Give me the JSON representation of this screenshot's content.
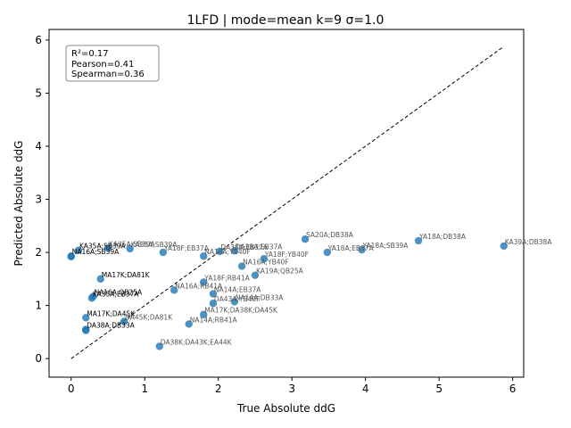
{
  "chart_data": {
    "type": "scatter",
    "title": "1LFD | mode=mean k=9 σ=1.0",
    "xlabel": "True Absolute ddG",
    "ylabel": "Predicted Absolute ddG",
    "xlim": [
      -0.3,
      6.15
    ],
    "ylim": [
      -0.35,
      6.2
    ],
    "xticks": [
      "0",
      "1",
      "2",
      "3",
      "4",
      "5",
      "6"
    ],
    "yticks": [
      "0",
      "1",
      "2",
      "3",
      "4",
      "5",
      "6"
    ],
    "diagonal": {
      "from": [
        0,
        0
      ],
      "to": [
        5.88,
        5.88
      ],
      "style": "dashed"
    },
    "stats": [
      "R²=0.17",
      "Pearson=0.41",
      "Spearman=0.36"
    ],
    "stats_placement": "top-left",
    "points": [
      {
        "x": 0.1,
        "y": 2.04,
        "label": "KA35A;SB39A",
        "dark": true
      },
      {
        "x": 0.0,
        "y": 1.93,
        "label": "NA16A;SB39A",
        "dark": true
      },
      {
        "x": 0.0,
        "y": 1.92,
        "label": "",
        "dark": true
      },
      {
        "x": 0.5,
        "y": 2.08,
        "label": "KA35A;SB39A",
        "dark": false
      },
      {
        "x": 0.8,
        "y": 2.07,
        "label": "KA35A;SB39A",
        "dark": false
      },
      {
        "x": 1.25,
        "y": 2.0,
        "label": "YA18F;EB37A",
        "dark": false
      },
      {
        "x": 1.8,
        "y": 1.93,
        "label": "NA16A;YB40F",
        "dark": false
      },
      {
        "x": 2.02,
        "y": 2.02,
        "label": "DA38A;EB37A",
        "dark": false
      },
      {
        "x": 2.22,
        "y": 2.03,
        "label": "DA38A;EB37A",
        "dark": false
      },
      {
        "x": 2.62,
        "y": 1.88,
        "label": "YA18F;YB40F",
        "dark": false
      },
      {
        "x": 2.32,
        "y": 1.74,
        "label": "NA16A;YB40F",
        "dark": false
      },
      {
        "x": 2.5,
        "y": 1.57,
        "label": "KA19A;QB25A",
        "dark": false
      },
      {
        "x": 3.18,
        "y": 2.25,
        "label": "SA20A;DB38A",
        "dark": false
      },
      {
        "x": 3.48,
        "y": 2.0,
        "label": "YA18A;EB37A",
        "dark": false
      },
      {
        "x": 3.95,
        "y": 2.05,
        "label": "YA18A;SB39A",
        "dark": false
      },
      {
        "x": 4.72,
        "y": 2.22,
        "label": "YA18A;DB38A",
        "dark": false
      },
      {
        "x": 5.88,
        "y": 2.12,
        "label": "KA39A;DB38A",
        "dark": false
      },
      {
        "x": 0.4,
        "y": 1.5,
        "label": "MA17K;DA81K",
        "dark": true
      },
      {
        "x": 1.8,
        "y": 1.44,
        "label": "YA18F;RB41A",
        "dark": false
      },
      {
        "x": 1.4,
        "y": 1.29,
        "label": "NA16A;RB41A",
        "dark": false
      },
      {
        "x": 0.3,
        "y": 1.17,
        "label": "NA16A;QB25A",
        "dark": true
      },
      {
        "x": 0.28,
        "y": 1.14,
        "label": "KA35A;EB37A",
        "dark": true
      },
      {
        "x": 1.93,
        "y": 1.22,
        "label": "NA14A;EB37A",
        "dark": false
      },
      {
        "x": 2.22,
        "y": 1.07,
        "label": "NA14A;DB33A",
        "dark": false
      },
      {
        "x": 1.93,
        "y": 1.04,
        "label": "DA43A;YB40F",
        "dark": false
      },
      {
        "x": 0.2,
        "y": 0.77,
        "label": "MA17K;DA45K",
        "dark": true
      },
      {
        "x": 0.72,
        "y": 0.7,
        "label": "DA45K;DA81K",
        "dark": false
      },
      {
        "x": 1.8,
        "y": 0.83,
        "label": "MA17K;DA38K;DA45K",
        "dark": false
      },
      {
        "x": 1.6,
        "y": 0.65,
        "label": "NA14A;RB41A",
        "dark": false
      },
      {
        "x": 0.2,
        "y": 0.55,
        "label": "DA38A;DB33A",
        "dark": true
      },
      {
        "x": 0.2,
        "y": 0.53,
        "label": "",
        "dark": true
      },
      {
        "x": 1.2,
        "y": 0.23,
        "label": "DA38K;DA43K;EA44K",
        "dark": false
      }
    ]
  }
}
